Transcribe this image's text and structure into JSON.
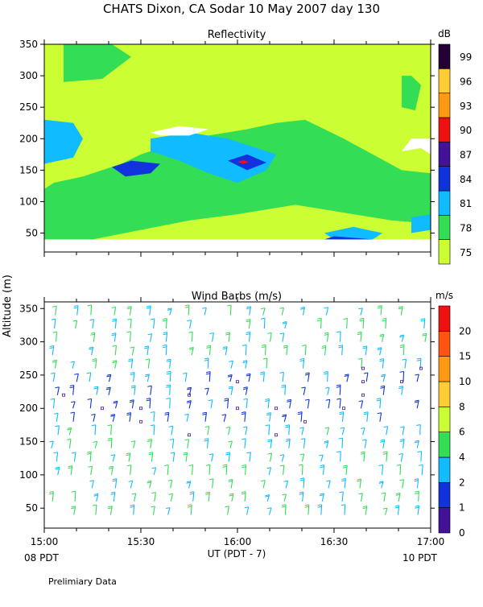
{
  "title": "CHATS Dixon, CA  Sodar  10 May 2007  day 130",
  "footer_note": "Prelimiary Data",
  "x_axis": {
    "label": "UT  (PDT - 7)",
    "ticks": [
      "15:00",
      "15:30",
      "16:00",
      "16:30",
      "17:00"
    ],
    "left_corner_label": "08 PDT",
    "right_corner_label": "10 PDT"
  },
  "y_axis_label": "Altitude  (m)",
  "chart_data": [
    {
      "type": "heatmap",
      "title": "Reflectivity",
      "ylim": [
        20,
        350
      ],
      "y_ticks": [
        50,
        100,
        150,
        200,
        250,
        300,
        350
      ],
      "colorbar": {
        "unit": "dB",
        "levels": [
          "75",
          "78",
          "81",
          "84",
          "87",
          "90",
          "93",
          "96",
          "99"
        ],
        "colors": [
          "#ccff33",
          "#33dd55",
          "#11bbff",
          "#1133dd",
          "#441199",
          "#ee1111",
          "#ff9911",
          "#ffcc33",
          "#220033"
        ]
      },
      "background_color": "#ffffff",
      "regions": [
        {
          "level": "75",
          "points": [
            [
              15.0,
              40
            ],
            [
              17.0,
              40
            ],
            [
              17.0,
              350
            ],
            [
              15.0,
              350
            ]
          ]
        },
        {
          "level": "78",
          "points": [
            [
              15.0,
              40
            ],
            [
              15.25,
              40
            ],
            [
              15.5,
              55
            ],
            [
              15.75,
              70
            ],
            [
              16.0,
              80
            ],
            [
              16.3,
              95
            ],
            [
              16.6,
              80
            ],
            [
              16.8,
              70
            ],
            [
              17.0,
              65
            ],
            [
              17.0,
              145
            ],
            [
              16.85,
              150
            ],
            [
              16.7,
              175
            ],
            [
              16.55,
              200
            ],
            [
              16.45,
              215
            ],
            [
              16.35,
              230
            ],
            [
              16.2,
              225
            ],
            [
              16.05,
              215
            ],
            [
              15.85,
              205
            ],
            [
              15.65,
              190
            ],
            [
              15.5,
              175
            ],
            [
              15.4,
              160
            ],
            [
              15.2,
              140
            ],
            [
              15.05,
              130
            ],
            [
              15.0,
              120
            ]
          ]
        },
        {
          "level": "78",
          "points": [
            [
              15.1,
              290
            ],
            [
              15.3,
              295
            ],
            [
              15.45,
              330
            ],
            [
              15.35,
              350
            ],
            [
              15.1,
              350
            ]
          ]
        },
        {
          "level": "78",
          "points": [
            [
              16.85,
              250
            ],
            [
              16.92,
              245
            ],
            [
              16.95,
              285
            ],
            [
              16.9,
              300
            ],
            [
              16.85,
              300
            ]
          ]
        },
        {
          "level": "81",
          "points": [
            [
              15.0,
              160
            ],
            [
              15.15,
              170
            ],
            [
              15.2,
              200
            ],
            [
              15.15,
              225
            ],
            [
              15.0,
              230
            ]
          ]
        },
        {
          "level": "81",
          "points": [
            [
              15.55,
              200
            ],
            [
              15.75,
              210
            ],
            [
              15.95,
              200
            ],
            [
              16.1,
              185
            ],
            [
              16.2,
              175
            ],
            [
              16.15,
              150
            ],
            [
              16.0,
              130
            ],
            [
              15.85,
              145
            ],
            [
              15.7,
              165
            ],
            [
              15.55,
              180
            ]
          ]
        },
        {
          "level": "81",
          "points": [
            [
              16.45,
              50
            ],
            [
              16.6,
              60
            ],
            [
              16.75,
              50
            ],
            [
              16.7,
              40
            ],
            [
              16.5,
              40
            ]
          ]
        },
        {
          "level": "81",
          "points": [
            [
              16.9,
              50
            ],
            [
              17.0,
              55
            ],
            [
              17.0,
              80
            ],
            [
              16.9,
              75
            ]
          ]
        },
        {
          "level": "84",
          "points": [
            [
              15.35,
              155
            ],
            [
              15.45,
              165
            ],
            [
              15.6,
              160
            ],
            [
              15.55,
              145
            ],
            [
              15.42,
              140
            ]
          ]
        },
        {
          "level": "84",
          "points": [
            [
              15.95,
              165
            ],
            [
              16.05,
              175
            ],
            [
              16.15,
              162
            ],
            [
              16.05,
              150
            ]
          ]
        },
        {
          "level": "84",
          "points": [
            [
              16.45,
              40
            ],
            [
              16.5,
              45
            ],
            [
              16.7,
              40
            ]
          ]
        },
        {
          "level": "90",
          "points": [
            [
              16.0,
              163
            ],
            [
              16.03,
              166
            ],
            [
              16.06,
              163
            ],
            [
              16.03,
              160
            ]
          ]
        }
      ],
      "white_gaps": [
        {
          "points": [
            [
              15.55,
              210
            ],
            [
              15.7,
              220
            ],
            [
              15.85,
              215
            ],
            [
              15.75,
              205
            ],
            [
              15.6,
              205
            ]
          ]
        },
        {
          "points": [
            [
              16.85,
              180
            ],
            [
              16.95,
              185
            ],
            [
              17.0,
              175
            ],
            [
              17.0,
              200
            ],
            [
              16.9,
              200
            ]
          ]
        }
      ]
    },
    {
      "type": "scatter",
      "title": "Wind Barbs (m/s)",
      "ylim": [
        20,
        360
      ],
      "y_ticks": [
        50,
        100,
        150,
        200,
        250,
        300,
        350
      ],
      "colorbar": {
        "unit": "m/s",
        "levels": [
          "0",
          "1",
          "2",
          "4",
          "6",
          "8",
          "10",
          "15",
          "20"
        ],
        "colors": [
          "#441199",
          "#1133dd",
          "#11bbff",
          "#33dd55",
          "#ccff33",
          "#ffcc33",
          "#ff9911",
          "#ff5511",
          "#ee1111"
        ]
      },
      "columns_time": [
        15.05,
        15.15,
        15.25,
        15.35,
        15.45,
        15.55,
        15.65,
        15.75,
        15.85,
        15.95,
        16.05,
        16.15,
        16.25,
        16.35,
        16.45,
        16.55,
        16.65,
        16.75,
        16.85,
        16.95
      ],
      "heights": [
        40,
        60,
        80,
        100,
        120,
        140,
        160,
        180,
        200,
        220,
        240,
        260,
        280,
        300,
        320,
        340
      ],
      "calm_markers": [
        {
          "t": 15.1,
          "h": 220
        },
        {
          "t": 15.3,
          "h": 200
        },
        {
          "t": 15.5,
          "h": 200
        },
        {
          "t": 15.5,
          "h": 180
        },
        {
          "t": 15.75,
          "h": 160
        },
        {
          "t": 15.75,
          "h": 220
        },
        {
          "t": 16.0,
          "h": 240
        },
        {
          "t": 16.0,
          "h": 200
        },
        {
          "t": 16.2,
          "h": 200
        },
        {
          "t": 16.2,
          "h": 160
        },
        {
          "t": 16.35,
          "h": 180
        },
        {
          "t": 16.55,
          "h": 200
        },
        {
          "t": 16.65,
          "h": 260
        },
        {
          "t": 16.65,
          "h": 240
        },
        {
          "t": 16.65,
          "h": 220
        },
        {
          "t": 16.85,
          "h": 240
        },
        {
          "t": 16.95,
          "h": 260
        }
      ]
    }
  ]
}
